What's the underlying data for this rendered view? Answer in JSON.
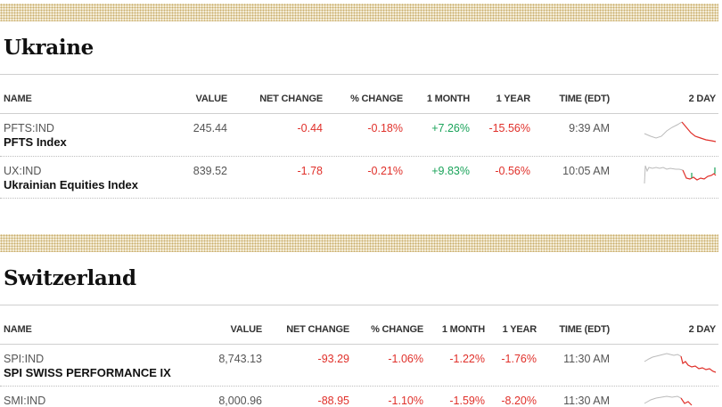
{
  "headers": {
    "name": "NAME",
    "value": "VALUE",
    "net_change": "NET CHANGE",
    "pct_change": "% CHANGE",
    "one_month": "1 MONTH",
    "one_year": "1 YEAR",
    "time": "TIME (EDT)",
    "two_day": "2 DAY"
  },
  "sections": [
    {
      "title": "Ukraine",
      "rows": [
        {
          "ticker": "PFTS:IND",
          "name": "PFTS Index",
          "value": "245.44",
          "net_change": "-0.44",
          "pct_change": "-0.18%",
          "one_month": "+7.26%",
          "one_year": "-15.56%",
          "time": "9:39 AM"
        },
        {
          "ticker": "UX:IND",
          "name": "Ukrainian Equities Index",
          "value": "839.52",
          "net_change": "-1.78",
          "pct_change": "-0.21%",
          "one_month": "+9.83%",
          "one_year": "-0.56%",
          "time": "10:05 AM"
        }
      ]
    },
    {
      "title": "Switzerland",
      "rows": [
        {
          "ticker": "SPI:IND",
          "name": "SPI SWISS PERFORMANCE IX",
          "value": "8,743.13",
          "net_change": "-93.29",
          "pct_change": "-1.06%",
          "one_month": "-1.22%",
          "one_year": "-1.76%",
          "time": "11:30 AM"
        },
        {
          "ticker": "SMI:IND",
          "name": "",
          "value": "8,000.96",
          "net_change": "-88.95",
          "pct_change": "-1.10%",
          "one_month": "-1.59%",
          "one_year": "-8.20%",
          "time": "11:30 AM"
        }
      ]
    }
  ],
  "colors": {
    "negative": "#e0302a",
    "positive": "#1aa35a",
    "sparkline_prior": "#bbbbbb",
    "band": "#c9ad6a"
  }
}
